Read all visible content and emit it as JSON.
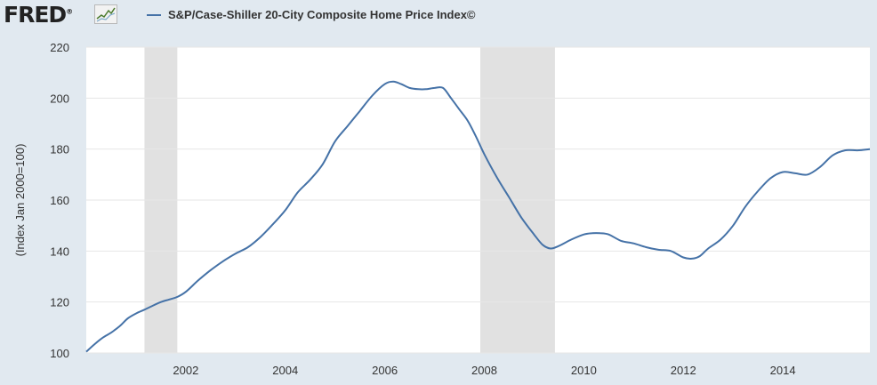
{
  "brand": {
    "logo_text": "FRED",
    "logo_mark": "®"
  },
  "colors": {
    "line": "#4572a7",
    "recession": "#e1e1e1",
    "grid": "#e6e6e6",
    "plot_bg": "#ffffff",
    "page_bg": "#e1e9f0"
  },
  "chart_data": {
    "type": "line",
    "title": "",
    "xlabel": "",
    "ylabel": "(Index Jan 2000=100)",
    "ylim": [
      100,
      220
    ],
    "xlim": [
      2000.0,
      2015.75
    ],
    "yticks": [
      100,
      120,
      140,
      160,
      180,
      200,
      220
    ],
    "xticks": [
      "2002",
      "2004",
      "2006",
      "2008",
      "2010",
      "2012",
      "2014"
    ],
    "grid": true,
    "legend": "top-left",
    "recessions": [
      [
        2001.17,
        2001.83
      ],
      [
        2007.92,
        2009.42
      ]
    ],
    "series": [
      {
        "name": "S&P/Case-Shiller 20-City Composite Home Price Index©",
        "x": [
          2000.0,
          2000.17,
          2000.33,
          2000.5,
          2000.67,
          2000.83,
          2001.0,
          2001.17,
          2001.33,
          2001.5,
          2001.67,
          2001.83,
          2002.0,
          2002.25,
          2002.5,
          2002.75,
          2003.0,
          2003.25,
          2003.5,
          2003.75,
          2004.0,
          2004.25,
          2004.5,
          2004.75,
          2005.0,
          2005.25,
          2005.5,
          2005.75,
          2006.0,
          2006.17,
          2006.33,
          2006.5,
          2006.67,
          2006.83,
          2007.0,
          2007.17,
          2007.33,
          2007.5,
          2007.67,
          2007.83,
          2008.0,
          2008.25,
          2008.5,
          2008.75,
          2009.0,
          2009.17,
          2009.33,
          2009.5,
          2009.75,
          2010.0,
          2010.17,
          2010.33,
          2010.5,
          2010.75,
          2011.0,
          2011.25,
          2011.5,
          2011.75,
          2012.0,
          2012.17,
          2012.33,
          2012.5,
          2012.75,
          2013.0,
          2013.25,
          2013.5,
          2013.75,
          2014.0,
          2014.25,
          2014.5,
          2014.75,
          2015.0,
          2015.25,
          2015.5,
          2015.75
        ],
        "values": [
          100.5,
          103.5,
          106.0,
          108.0,
          110.5,
          113.5,
          115.5,
          117.0,
          118.5,
          120.0,
          121.0,
          122.0,
          124.0,
          128.5,
          132.5,
          136.0,
          139.0,
          141.5,
          145.5,
          150.5,
          156.0,
          163.0,
          168.0,
          174.0,
          183.0,
          189.0,
          195.0,
          201.0,
          205.5,
          206.5,
          205.5,
          204.0,
          203.5,
          203.5,
          204.0,
          204.0,
          200.0,
          195.5,
          191.0,
          185.0,
          178.0,
          169.0,
          161.0,
          153.0,
          146.5,
          142.5,
          141.0,
          142.0,
          144.5,
          146.5,
          147.0,
          147.0,
          146.5,
          144.0,
          143.0,
          141.5,
          140.5,
          140.0,
          137.5,
          137.0,
          138.0,
          141.0,
          144.5,
          150.0,
          157.5,
          163.5,
          168.5,
          171.0,
          170.5,
          170.0,
          173.0,
          177.5,
          179.5,
          179.5,
          180.0
        ]
      }
    ]
  }
}
